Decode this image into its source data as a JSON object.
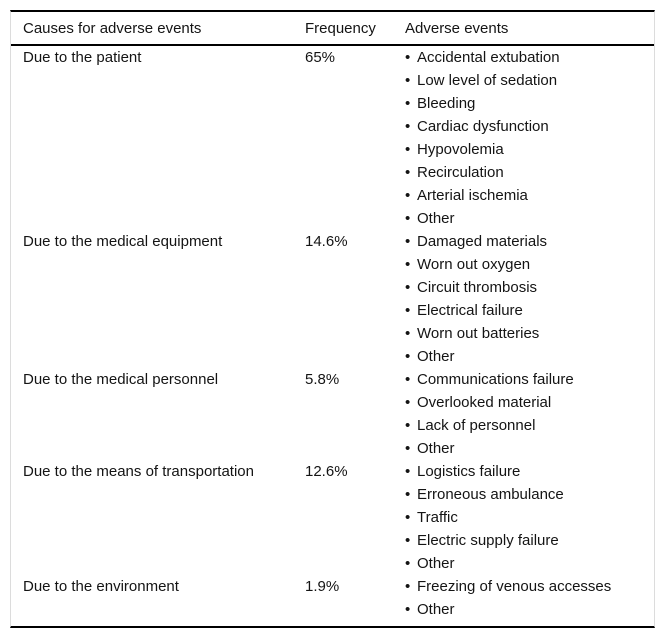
{
  "table": {
    "bullet": "•",
    "columns": {
      "causes": "Causes for adverse events",
      "frequency": "Frequency",
      "events": "Adverse events"
    },
    "rows": [
      {
        "cause": "Due to the patient",
        "frequency": "65%",
        "events": [
          "Accidental extubation",
          "Low level of sedation",
          "Bleeding",
          "Cardiac dysfunction",
          "Hypovolemia",
          "Recirculation",
          "Arterial ischemia",
          "Other"
        ]
      },
      {
        "cause": "Due to the medical equipment",
        "frequency": "14.6%",
        "events": [
          "Damaged materials",
          "Worn out oxygen",
          "Circuit thrombosis",
          "Electrical failure",
          "Worn out batteries",
          "Other"
        ]
      },
      {
        "cause": "Due to the medical personnel",
        "frequency": "5.8%",
        "events": [
          "Communications failure",
          "Overlooked material",
          "Lack of personnel",
          "Other"
        ]
      },
      {
        "cause": "Due to the means of transportation",
        "frequency": "12.6%",
        "events": [
          "Logistics failure",
          "Erroneous ambulance",
          "Traffic",
          "Electric supply failure",
          "Other"
        ]
      },
      {
        "cause": "Due to the environment",
        "frequency": "1.9%",
        "events": [
          "Freezing of venous accesses",
          "Other"
        ]
      }
    ],
    "colors": {
      "rule_strong": "#000000",
      "rule_light": "#dcdcdc",
      "text": "#141414",
      "background": "#ffffff"
    }
  }
}
